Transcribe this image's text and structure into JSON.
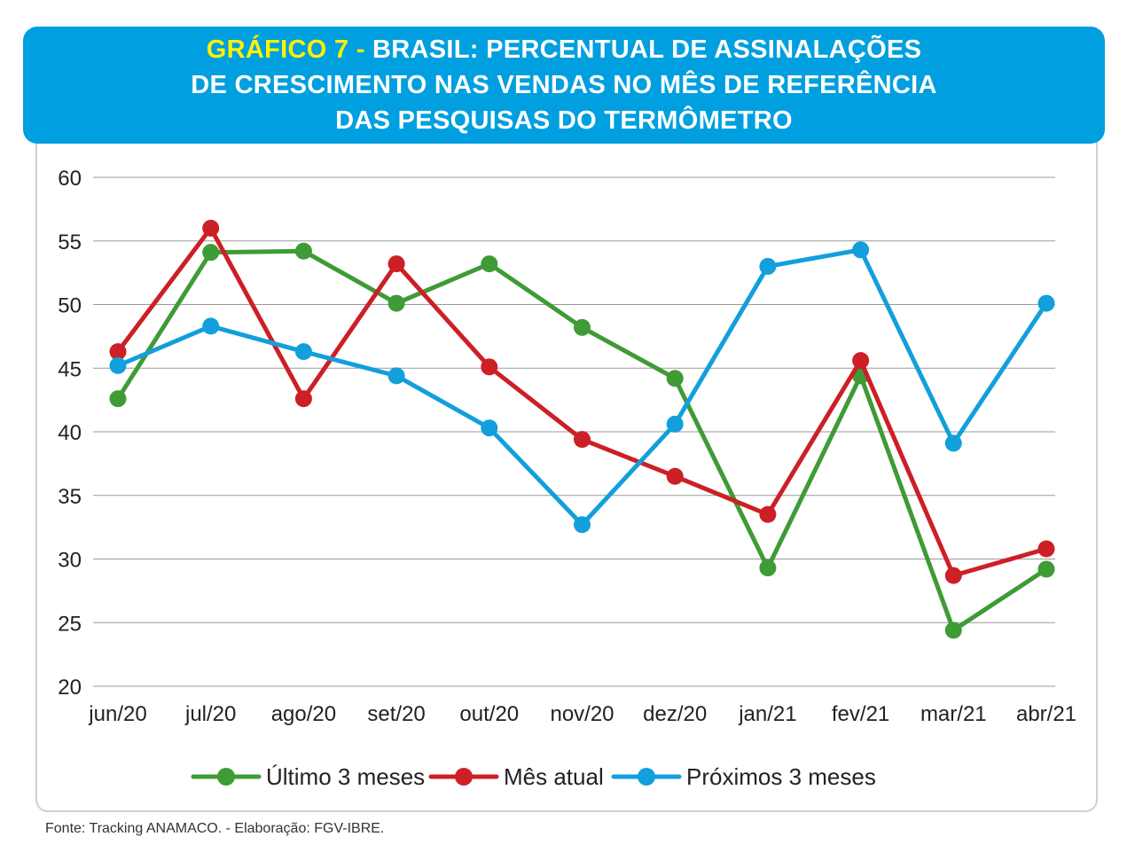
{
  "header": {
    "prefix": "GRÁFICO 7 - ",
    "line1": "BRASIL: PERCENTUAL DE ASSINALAÇÕES",
    "line2": "DE CRESCIMENTO NAS VENDAS NO MÊS DE REFERÊNCIA",
    "line3": "DAS PESQUISAS DO TERMÔMETRO"
  },
  "footer": {
    "source": "Fonte: Tracking ANAMACO. - Elaboração: FGV-IBRE."
  },
  "colors": {
    "banner": "#009fdf",
    "prefix": "#fff200",
    "green": "#3e9b35",
    "red": "#cc1f26",
    "blue": "#129fdc",
    "grid": "#9a9a9a"
  },
  "chart_data": {
    "type": "line",
    "categories": [
      "jun/20",
      "jul/20",
      "ago/20",
      "set/20",
      "out/20",
      "nov/20",
      "dez/20",
      "jan/21",
      "fev/21",
      "mar/21",
      "abr/21"
    ],
    "ylim": [
      20,
      60
    ],
    "yticks": [
      60,
      55,
      50,
      45,
      40,
      35,
      30,
      25,
      20
    ],
    "grid": true,
    "legend_position": "bottom",
    "series": [
      {
        "name": "Último 3 meses",
        "color": "#3e9b35",
        "values": [
          42.6,
          54.1,
          54.2,
          50.1,
          53.2,
          48.2,
          44.2,
          29.3,
          44.4,
          24.4,
          29.2
        ]
      },
      {
        "name": "Mês atual",
        "color": "#cc1f26",
        "values": [
          46.3,
          56.0,
          42.6,
          53.2,
          45.1,
          39.4,
          36.5,
          33.5,
          45.6,
          28.7,
          30.8
        ]
      },
      {
        "name": "Próximos 3 meses",
        "color": "#129fdc",
        "values": [
          45.2,
          48.3,
          46.3,
          44.4,
          40.3,
          32.7,
          40.6,
          53.0,
          54.3,
          39.1,
          50.1
        ]
      }
    ]
  }
}
